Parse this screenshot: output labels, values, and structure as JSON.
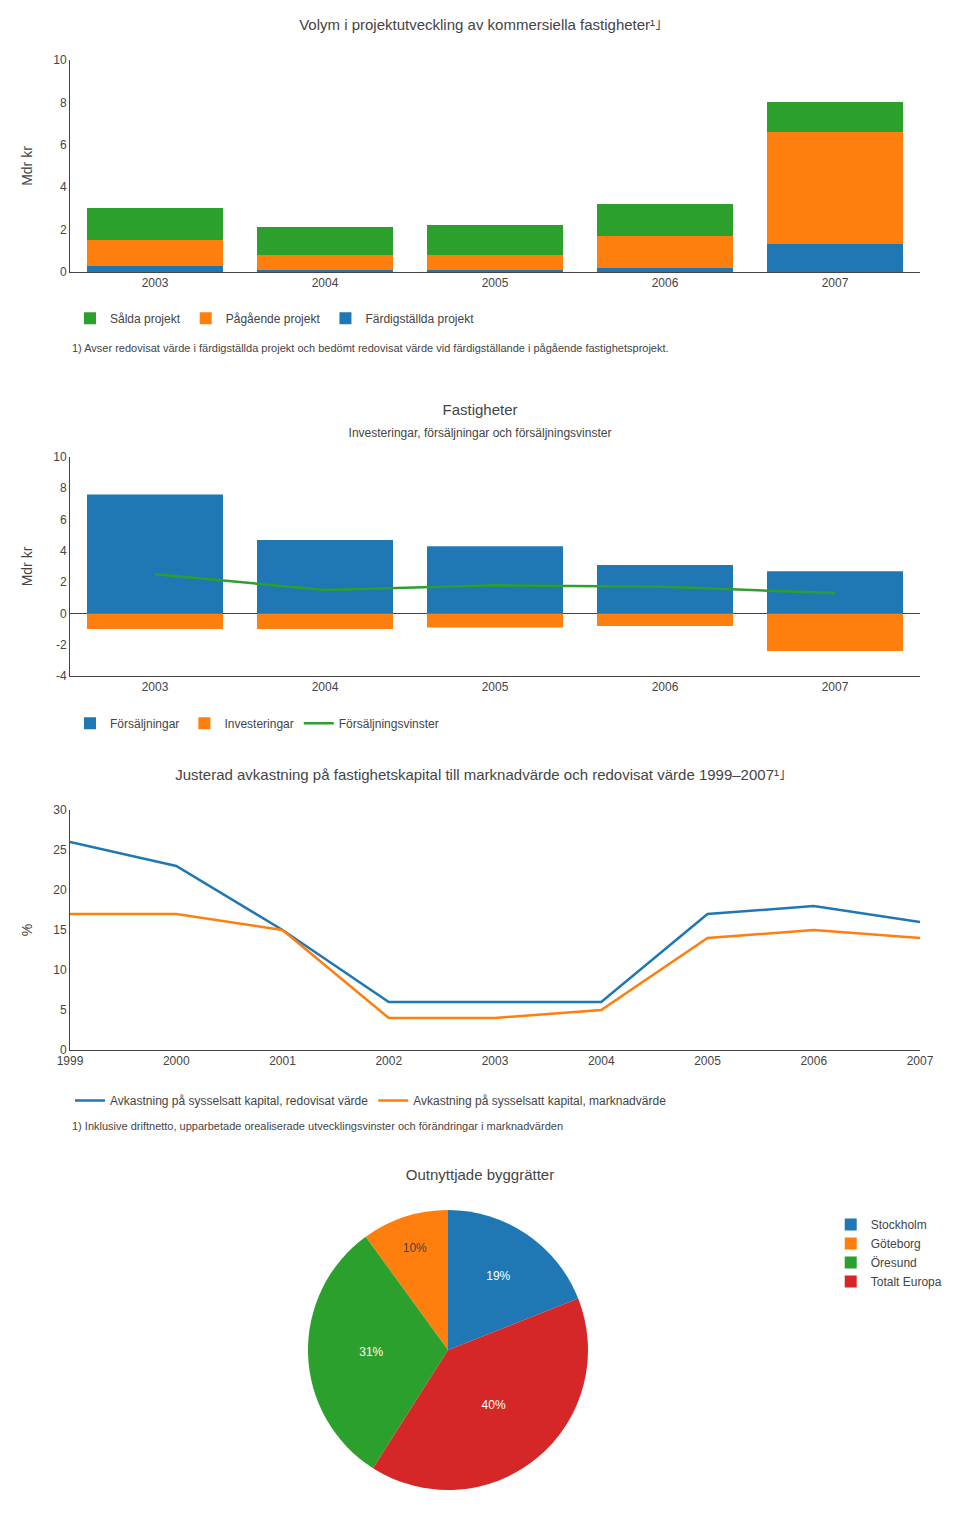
{
  "chart_data": [
    {
      "type": "bar",
      "stacked": true,
      "title": "Volym i projektutveckling av kommersiella fastigheter¹˩",
      "ylabel": "Mdr kr",
      "annotations": [
        "1) Avser redovisat värde i färdigställda projekt och bedömt redovisat värde vid färdigställande i pågående fastighetsprojekt."
      ],
      "categories": [
        "2003",
        "2004",
        "2005",
        "2006",
        "2007"
      ],
      "series": [
        {
          "name": "Färdigställda projekt",
          "values": [
            0.3,
            0.1,
            0.1,
            0.2,
            1.3
          ]
        },
        {
          "name": "Pågående projekt",
          "values": [
            1.2,
            0.7,
            0.7,
            1.5,
            5.3
          ]
        },
        {
          "name": "Sålda projekt",
          "values": [
            1.5,
            1.3,
            1.4,
            1.5,
            1.4
          ]
        }
      ],
      "ylim": [
        0,
        10
      ],
      "yticks": [
        0,
        2,
        4,
        6,
        8,
        10
      ],
      "grid": false,
      "legend": "bottom"
    },
    {
      "type": "bar",
      "title": "Fastigheter",
      "subtitle": "Investeringar, försäljningar och försäljningsvinster",
      "ylabel": "Mdr kr",
      "categories": [
        "2003",
        "2004",
        "2005",
        "2006",
        "2007"
      ],
      "series": [
        {
          "name": "Försäljningar",
          "type": "bar",
          "values": [
            7.6,
            4.7,
            4.3,
            3.1,
            2.7
          ]
        },
        {
          "name": "Investeringar",
          "type": "bar",
          "values": [
            -1.0,
            -1.0,
            -0.9,
            -0.8,
            -2.4
          ]
        },
        {
          "name": "Försäljningsvinster",
          "type": "line",
          "values": [
            2.5,
            1.5,
            1.8,
            1.7,
            1.3
          ]
        }
      ],
      "ylim": [
        -4,
        10
      ],
      "yticks": [
        -4,
        -2,
        0,
        2,
        4,
        6,
        8,
        10
      ],
      "grid": false,
      "legend": "bottom"
    },
    {
      "type": "line",
      "title": "Justerad avkastning på fastighetskapital till marknadvärde och redovisat värde 1999–2007¹˩",
      "ylabel": "%",
      "annotations": [
        "1) Inklusive driftnetto, upparbetade orealiserade utvecklingsvinster och förändringar i marknadvärden"
      ],
      "categories": [
        "1999",
        "2000",
        "2001",
        "2002",
        "2003",
        "2004",
        "2005",
        "2006",
        "2007"
      ],
      "series": [
        {
          "name": "Avkastning på sysselsatt kapital, redovisat värde",
          "values": [
            26,
            23,
            15,
            6,
            6,
            6,
            17,
            18,
            16
          ]
        },
        {
          "name": "Avkastning på sysselsatt kapital, marknadvärde",
          "values": [
            17,
            17,
            15,
            4,
            4,
            5,
            14,
            15,
            14
          ]
        }
      ],
      "ylim": [
        0,
        30
      ],
      "yticks": [
        0,
        5,
        10,
        15,
        20,
        25,
        30
      ],
      "grid": false,
      "legend": "bottom"
    },
    {
      "type": "pie",
      "title": "Outnyttjade byggrätter",
      "categories": [
        "Stockholm",
        "Göteborg",
        "Öresund",
        "Totalt Europa"
      ],
      "values": [
        19,
        10,
        31,
        40
      ],
      "value_labels": [
        "19%",
        "10%",
        "31%",
        "40%"
      ],
      "data_labels": true,
      "legend": "right"
    }
  ]
}
